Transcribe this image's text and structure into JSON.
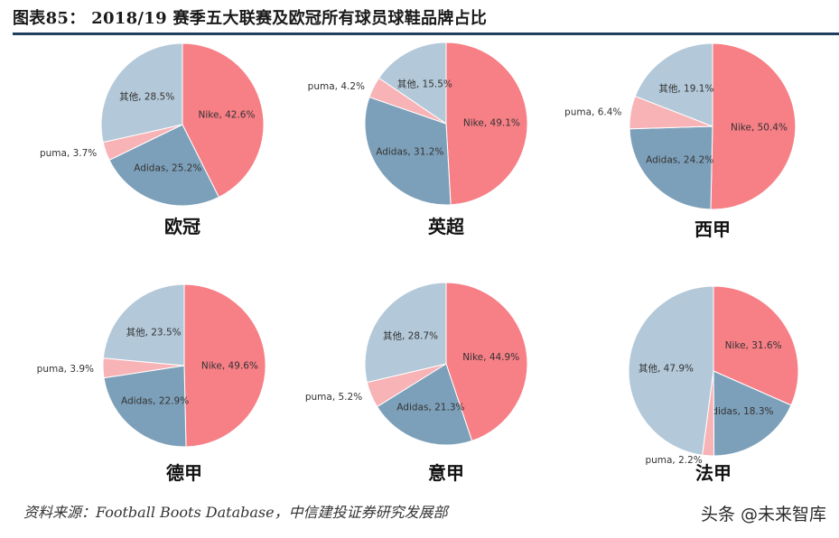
{
  "figure": {
    "title": "图表85：  2018/19 赛季五大联赛及欧冠所有球员球鞋品牌占比",
    "source": "资料来源：Football Boots Database，中信建投证券研究发展部",
    "watermark": "头条 @未来智库"
  },
  "colors": {
    "Nike": "#f77f86",
    "Adidas": "#7da0ba",
    "puma": "#f8b3b6",
    "其他": "#b3c8d8"
  },
  "chart_data": [
    {
      "type": "pie",
      "title": "欧冠",
      "categories": [
        "Nike",
        "Adidas",
        "puma",
        "其他"
      ],
      "values": [
        42.6,
        25.2,
        3.7,
        28.5
      ],
      "labels": [
        "Nike, 42.6%",
        "Adidas, 25.2%",
        "puma, 3.7%",
        "其他, 28.5%"
      ]
    },
    {
      "type": "pie",
      "title": "英超",
      "categories": [
        "Nike",
        "Adidas",
        "puma",
        "其他"
      ],
      "values": [
        49.1,
        31.2,
        4.2,
        15.5
      ],
      "labels": [
        "Nike, 49.1%",
        "Adidas, 31.2%",
        "puma, 4.2%",
        "其他, 15.5%"
      ]
    },
    {
      "type": "pie",
      "title": "西甲",
      "categories": [
        "Nike",
        "Adidas",
        "puma",
        "其他"
      ],
      "values": [
        50.4,
        24.2,
        6.4,
        19.1
      ],
      "labels": [
        "Nike, 50.4%",
        "Adidas, 24.2%",
        "puma, 6.4%",
        "其他, 19.1%"
      ]
    },
    {
      "type": "pie",
      "title": "德甲",
      "categories": [
        "Nike",
        "Adidas",
        "puma",
        "其他"
      ],
      "values": [
        49.6,
        22.9,
        3.9,
        23.5
      ],
      "labels": [
        "Nike, 49.6%",
        "Adidas, 22.9%",
        "puma, 3.9%",
        "其他, 23.5%"
      ]
    },
    {
      "type": "pie",
      "title": "意甲",
      "categories": [
        "Nike",
        "Adidas",
        "puma",
        "其他"
      ],
      "values": [
        44.9,
        21.3,
        5.2,
        28.7
      ],
      "labels": [
        "Nike, 44.9%",
        "Adidas, 21.3%",
        "puma, 5.2%",
        "其他, 28.7%"
      ]
    },
    {
      "type": "pie",
      "title": "法甲",
      "categories": [
        "Nike",
        "Adidas",
        "puma",
        "其他"
      ],
      "values": [
        31.6,
        18.3,
        2.2,
        47.9
      ],
      "labels": [
        "Nike, 31.6%",
        "Adidas, 18.3%",
        "puma, 2.2%",
        "其他, 47.9%"
      ]
    }
  ]
}
